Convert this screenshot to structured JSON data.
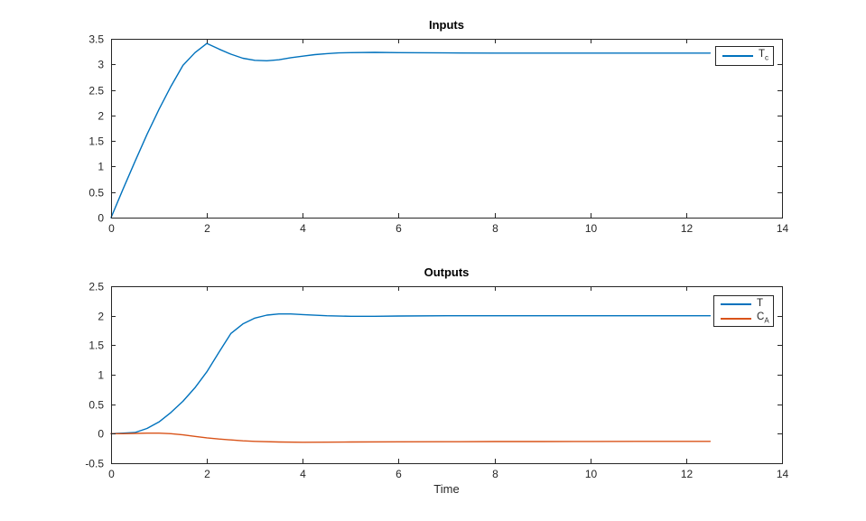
{
  "figure": {
    "background": "#ffffff"
  },
  "palette": {
    "blue": "#0072BD",
    "orange": "#D95319",
    "axis": "#262626",
    "text": "#262626"
  },
  "chart_data": [
    {
      "type": "line",
      "title": "Inputs",
      "xlabel": "",
      "ylabel": "",
      "xlim": [
        0,
        14
      ],
      "ylim": [
        0,
        3.5
      ],
      "xticks": [
        0,
        2,
        4,
        6,
        8,
        10,
        12,
        14
      ],
      "yticks": [
        0,
        0.5,
        1,
        1.5,
        2,
        2.5,
        3,
        3.5
      ],
      "grid": false,
      "legend_position": "northeast",
      "legend": [
        {
          "label": "T",
          "sub": "c",
          "color": "#0072BD"
        }
      ],
      "series": [
        {
          "name": "Tc",
          "color": "#0072BD",
          "x": [
            0,
            0.25,
            0.5,
            0.75,
            1,
            1.25,
            1.5,
            1.75,
            2,
            2.25,
            2.5,
            2.75,
            3,
            3.25,
            3.5,
            3.75,
            4,
            4.25,
            4.5,
            4.75,
            5,
            5.5,
            6,
            6.5,
            7,
            8,
            9,
            10,
            11,
            12,
            12.5
          ],
          "y": [
            0,
            0.56,
            1.1,
            1.63,
            2.12,
            2.57,
            2.98,
            3.23,
            3.41,
            3.3,
            3.2,
            3.12,
            3.08,
            3.07,
            3.09,
            3.13,
            3.16,
            3.19,
            3.21,
            3.225,
            3.23,
            3.235,
            3.23,
            3.228,
            3.225,
            3.22,
            3.22,
            3.22,
            3.22,
            3.22,
            3.22
          ]
        }
      ]
    },
    {
      "type": "line",
      "title": "Outputs",
      "xlabel": "Time",
      "ylabel": "",
      "xlim": [
        0,
        14
      ],
      "ylim": [
        -0.5,
        2.5
      ],
      "xticks": [
        0,
        2,
        4,
        6,
        8,
        10,
        12,
        14
      ],
      "yticks": [
        -0.5,
        0,
        0.5,
        1,
        1.5,
        2,
        2.5
      ],
      "grid": false,
      "legend_position": "northeast",
      "legend": [
        {
          "label": "T",
          "sub": "",
          "color": "#0072BD"
        },
        {
          "label": "C",
          "sub": "A",
          "color": "#D95319"
        }
      ],
      "series": [
        {
          "name": "T",
          "color": "#0072BD",
          "x": [
            0,
            0.25,
            0.5,
            0.75,
            1,
            1.25,
            1.5,
            1.75,
            2,
            2.25,
            2.5,
            2.75,
            3,
            3.25,
            3.5,
            3.75,
            4,
            4.5,
            5,
            5.5,
            6,
            7,
            8,
            9,
            10,
            11,
            12,
            12.5
          ],
          "y": [
            0,
            0.01,
            0.02,
            0.09,
            0.2,
            0.36,
            0.55,
            0.78,
            1.05,
            1.38,
            1.7,
            1.86,
            1.96,
            2.01,
            2.03,
            2.03,
            2.02,
            2.0,
            1.99,
            1.99,
            1.995,
            2.0,
            2.0,
            2.0,
            2.0,
            2.0,
            2.0,
            2.0
          ]
        },
        {
          "name": "CA",
          "color": "#D95319",
          "x": [
            0,
            0.25,
            0.5,
            0.75,
            1,
            1.25,
            1.5,
            1.75,
            2,
            2.25,
            2.5,
            2.75,
            3,
            3.5,
            4,
            4.5,
            5,
            6,
            7,
            8,
            9,
            10,
            11,
            12,
            12.5
          ],
          "y": [
            0,
            0,
            0.005,
            0.01,
            0.01,
            0,
            -0.02,
            -0.045,
            -0.07,
            -0.09,
            -0.105,
            -0.12,
            -0.13,
            -0.14,
            -0.145,
            -0.143,
            -0.14,
            -0.137,
            -0.135,
            -0.133,
            -0.132,
            -0.131,
            -0.13,
            -0.13,
            -0.13
          ]
        }
      ]
    }
  ]
}
